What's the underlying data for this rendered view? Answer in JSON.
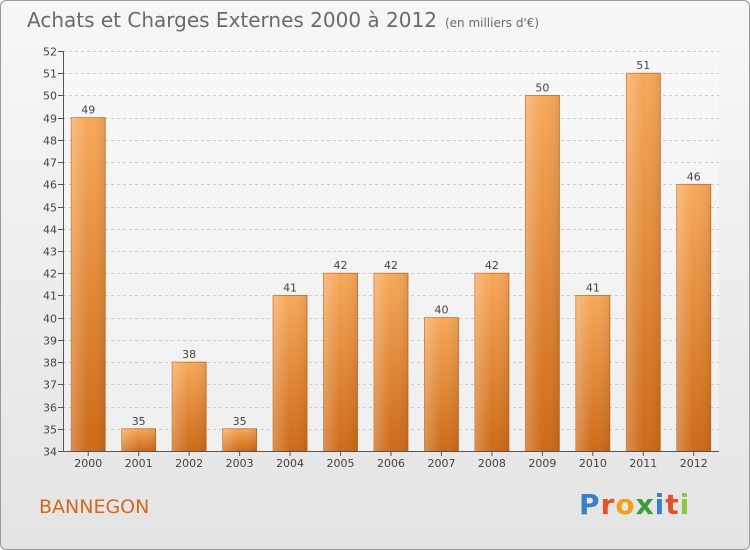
{
  "header": {
    "title": "Achats et Charges Externes 2000 à 2012",
    "unit": "(en milliers d'€)"
  },
  "footer": {
    "commune": "BANNEGON",
    "logo_letters": [
      "P",
      "r",
      "o",
      "x",
      "i",
      "t",
      "i"
    ],
    "logo_colors": [
      "#3a7fc8",
      "#e0522b",
      "#f2a01a",
      "#3a9d3a",
      "#3a7fc8",
      "#e0522b",
      "#8dc63f"
    ]
  },
  "chart_data": {
    "type": "bar",
    "title": "Achats et Charges Externes 2000 à 2012",
    "subtitle": "(en milliers d'€)",
    "categories": [
      "2000",
      "2001",
      "2002",
      "2003",
      "2004",
      "2005",
      "2006",
      "2007",
      "2008",
      "2009",
      "2010",
      "2011",
      "2012"
    ],
    "values": [
      49,
      35,
      38,
      35,
      41,
      42,
      42,
      40,
      42,
      50,
      41,
      51,
      46
    ],
    "ylim": [
      34,
      52
    ],
    "yticks": [
      34,
      35,
      36,
      37,
      38,
      39,
      40,
      41,
      42,
      43,
      44,
      45,
      46,
      47,
      48,
      49,
      50,
      51,
      52
    ],
    "grid": true,
    "legend": "none",
    "bar_color_top": "#f7a85a",
    "bar_color_bottom": "#cd6a17"
  }
}
